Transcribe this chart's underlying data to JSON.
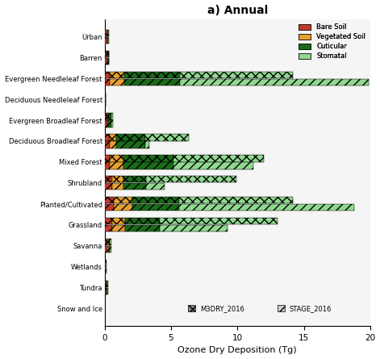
{
  "title": "a) Annual",
  "xlabel": "Ozone Dry Deposition (Tg)",
  "xlim": [
    0,
    20
  ],
  "xticks": [
    0,
    5,
    10,
    15,
    20
  ],
  "categories": [
    "Urban",
    "Barren",
    "Evergreen Needleleaf Forest",
    "Deciduous Needleleaf Forest",
    "Evergreen Broadleaf Forest",
    "Deciduous Broadleaf Forest",
    "Mixed Forest",
    "Shrubland",
    "Planted/Cultivated",
    "Grassland",
    "Savanna",
    "Wetlands",
    "Tundra",
    "Snow and Ice"
  ],
  "legend_labels": [
    "Bare Soil",
    "Vegetated Soil",
    "Cuticular",
    "Stomatal"
  ],
  "legend_colors": [
    "#c0392b",
    "#e8a030",
    "#1a6b1a",
    "#90d890"
  ],
  "bar_height": 0.32,
  "panel_bg": "#f5f5f5",
  "M3DRY": {
    "bare_soil": [
      0.2,
      0.22,
      0.38,
      0.04,
      0.18,
      0.4,
      0.4,
      0.6,
      0.7,
      0.6,
      0.22,
      0.05,
      0.1,
      0.02
    ],
    "veg_soil": [
      0.04,
      0.04,
      1.1,
      0.01,
      0.06,
      0.45,
      1.0,
      0.8,
      1.4,
      0.95,
      0.08,
      0.02,
      0.04,
      0.01
    ],
    "cuticular": [
      0.04,
      0.04,
      4.2,
      0.01,
      0.28,
      2.2,
      3.8,
      1.7,
      3.5,
      2.6,
      0.12,
      0.04,
      0.07,
      0.01
    ],
    "stomatal": [
      0.02,
      0.02,
      8.5,
      0.0,
      0.1,
      3.3,
      6.8,
      6.8,
      8.6,
      8.9,
      0.08,
      0.03,
      0.05,
      0.01
    ]
  },
  "STAGE": {
    "bare_soil": [
      0.2,
      0.22,
      0.38,
      0.04,
      0.18,
      0.4,
      0.4,
      0.6,
      0.7,
      0.6,
      0.22,
      0.05,
      0.1,
      0.02
    ],
    "veg_soil": [
      0.04,
      0.04,
      1.1,
      0.01,
      0.06,
      0.45,
      1.0,
      0.8,
      1.4,
      0.95,
      0.08,
      0.02,
      0.04,
      0.01
    ],
    "cuticular": [
      0.04,
      0.04,
      4.2,
      0.01,
      0.28,
      2.2,
      3.8,
      1.7,
      3.5,
      2.6,
      0.12,
      0.04,
      0.07,
      0.01
    ],
    "stomatal": [
      0.02,
      0.02,
      14.2,
      0.0,
      0.1,
      0.3,
      6.0,
      1.4,
      13.2,
      5.1,
      0.08,
      0.03,
      0.05,
      0.01
    ]
  }
}
